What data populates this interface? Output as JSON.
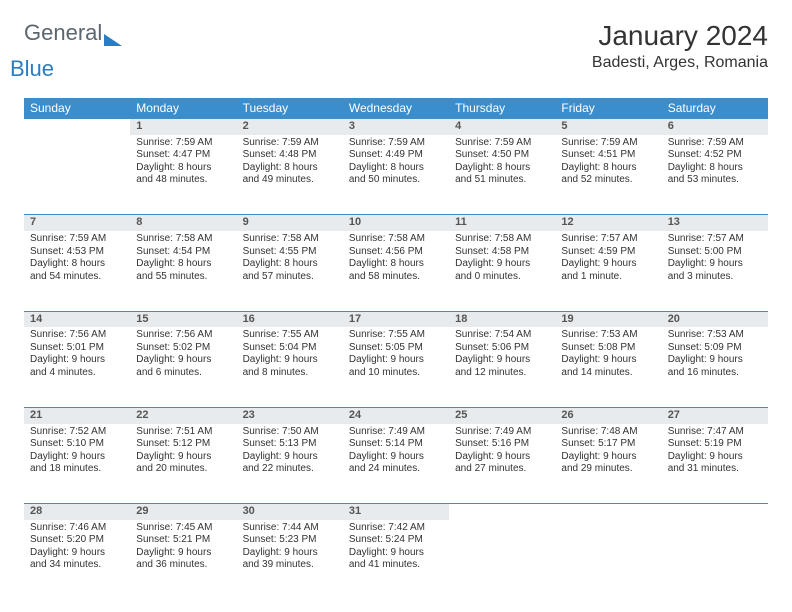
{
  "brand": {
    "general": "General",
    "blue": "Blue"
  },
  "title": "January 2024",
  "location": "Badesti, Arges, Romania",
  "colors": {
    "header_bg": "#3c8dcc",
    "header_text": "#ffffff",
    "daynum_bg": "#e8ebed",
    "daynum_border": "#3c8dcc",
    "body_text": "#333333",
    "logo_gray": "#5a6670",
    "logo_blue": "#2b7cc1",
    "page_bg": "#ffffff"
  },
  "typography": {
    "title_fontsize": 28,
    "location_fontsize": 16,
    "weekday_fontsize": 12,
    "daynum_fontsize": 11,
    "cell_fontsize": 10
  },
  "weekdays": [
    "Sunday",
    "Monday",
    "Tuesday",
    "Wednesday",
    "Thursday",
    "Friday",
    "Saturday"
  ],
  "start_offset": 1,
  "days": [
    {
      "n": 1,
      "sr": "7:59 AM",
      "ss": "4:47 PM",
      "dl": "8 hours and 48 minutes."
    },
    {
      "n": 2,
      "sr": "7:59 AM",
      "ss": "4:48 PM",
      "dl": "8 hours and 49 minutes."
    },
    {
      "n": 3,
      "sr": "7:59 AM",
      "ss": "4:49 PM",
      "dl": "8 hours and 50 minutes."
    },
    {
      "n": 4,
      "sr": "7:59 AM",
      "ss": "4:50 PM",
      "dl": "8 hours and 51 minutes."
    },
    {
      "n": 5,
      "sr": "7:59 AM",
      "ss": "4:51 PM",
      "dl": "8 hours and 52 minutes."
    },
    {
      "n": 6,
      "sr": "7:59 AM",
      "ss": "4:52 PM",
      "dl": "8 hours and 53 minutes."
    },
    {
      "n": 7,
      "sr": "7:59 AM",
      "ss": "4:53 PM",
      "dl": "8 hours and 54 minutes."
    },
    {
      "n": 8,
      "sr": "7:58 AM",
      "ss": "4:54 PM",
      "dl": "8 hours and 55 minutes."
    },
    {
      "n": 9,
      "sr": "7:58 AM",
      "ss": "4:55 PM",
      "dl": "8 hours and 57 minutes."
    },
    {
      "n": 10,
      "sr": "7:58 AM",
      "ss": "4:56 PM",
      "dl": "8 hours and 58 minutes."
    },
    {
      "n": 11,
      "sr": "7:58 AM",
      "ss": "4:58 PM",
      "dl": "9 hours and 0 minutes."
    },
    {
      "n": 12,
      "sr": "7:57 AM",
      "ss": "4:59 PM",
      "dl": "9 hours and 1 minute."
    },
    {
      "n": 13,
      "sr": "7:57 AM",
      "ss": "5:00 PM",
      "dl": "9 hours and 3 minutes."
    },
    {
      "n": 14,
      "sr": "7:56 AM",
      "ss": "5:01 PM",
      "dl": "9 hours and 4 minutes."
    },
    {
      "n": 15,
      "sr": "7:56 AM",
      "ss": "5:02 PM",
      "dl": "9 hours and 6 minutes."
    },
    {
      "n": 16,
      "sr": "7:55 AM",
      "ss": "5:04 PM",
      "dl": "9 hours and 8 minutes."
    },
    {
      "n": 17,
      "sr": "7:55 AM",
      "ss": "5:05 PM",
      "dl": "9 hours and 10 minutes."
    },
    {
      "n": 18,
      "sr": "7:54 AM",
      "ss": "5:06 PM",
      "dl": "9 hours and 12 minutes."
    },
    {
      "n": 19,
      "sr": "7:53 AM",
      "ss": "5:08 PM",
      "dl": "9 hours and 14 minutes."
    },
    {
      "n": 20,
      "sr": "7:53 AM",
      "ss": "5:09 PM",
      "dl": "9 hours and 16 minutes."
    },
    {
      "n": 21,
      "sr": "7:52 AM",
      "ss": "5:10 PM",
      "dl": "9 hours and 18 minutes."
    },
    {
      "n": 22,
      "sr": "7:51 AM",
      "ss": "5:12 PM",
      "dl": "9 hours and 20 minutes."
    },
    {
      "n": 23,
      "sr": "7:50 AM",
      "ss": "5:13 PM",
      "dl": "9 hours and 22 minutes."
    },
    {
      "n": 24,
      "sr": "7:49 AM",
      "ss": "5:14 PM",
      "dl": "9 hours and 24 minutes."
    },
    {
      "n": 25,
      "sr": "7:49 AM",
      "ss": "5:16 PM",
      "dl": "9 hours and 27 minutes."
    },
    {
      "n": 26,
      "sr": "7:48 AM",
      "ss": "5:17 PM",
      "dl": "9 hours and 29 minutes."
    },
    {
      "n": 27,
      "sr": "7:47 AM",
      "ss": "5:19 PM",
      "dl": "9 hours and 31 minutes."
    },
    {
      "n": 28,
      "sr": "7:46 AM",
      "ss": "5:20 PM",
      "dl": "9 hours and 34 minutes."
    },
    {
      "n": 29,
      "sr": "7:45 AM",
      "ss": "5:21 PM",
      "dl": "9 hours and 36 minutes."
    },
    {
      "n": 30,
      "sr": "7:44 AM",
      "ss": "5:23 PM",
      "dl": "9 hours and 39 minutes."
    },
    {
      "n": 31,
      "sr": "7:42 AM",
      "ss": "5:24 PM",
      "dl": "9 hours and 41 minutes."
    }
  ],
  "labels": {
    "sunrise": "Sunrise:",
    "sunset": "Sunset:",
    "daylight": "Daylight:"
  }
}
